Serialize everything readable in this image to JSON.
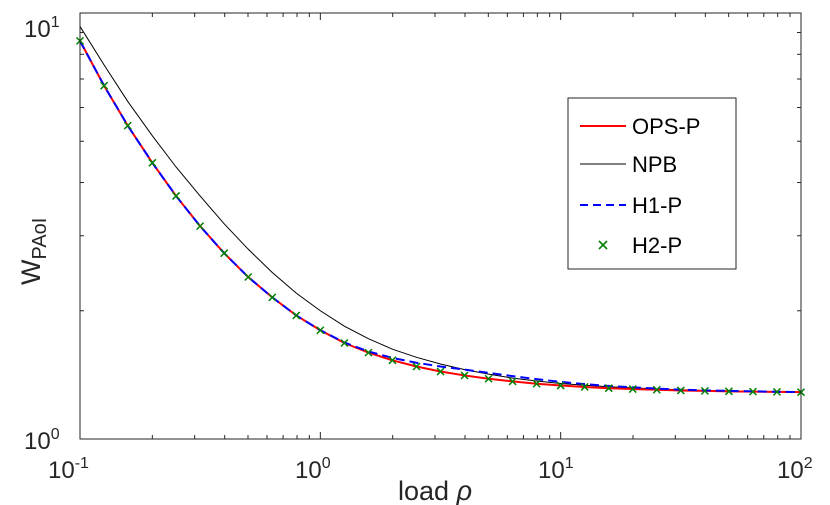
{
  "chart_data": {
    "type": "line",
    "xscale": "log",
    "yscale": "log",
    "xlim": [
      0.1,
      100
    ],
    "ylim": [
      1,
      10
    ],
    "x_ticks": [
      {
        "base": "10",
        "exp": "-1"
      },
      {
        "base": "10",
        "exp": "0"
      },
      {
        "base": "10",
        "exp": "1"
      },
      {
        "base": "10",
        "exp": "2"
      }
    ],
    "y_ticks": [
      {
        "base": "10",
        "exp": "0"
      },
      {
        "base": "10",
        "exp": "1"
      }
    ],
    "xlabel": "load ρ",
    "xlabel_main": "load ",
    "xlabel_symbol": "ρ",
    "ylabel_main": "W",
    "ylabel_sub": "PAoI",
    "grid": false,
    "legend_position": "top-right",
    "series": [
      {
        "name": "OPS-P",
        "color": "#ff0000",
        "style": "solid",
        "x": [
          0.1,
          0.126,
          0.158,
          0.2,
          0.251,
          0.316,
          0.398,
          0.501,
          0.631,
          0.794,
          1.0,
          1.259,
          1.585,
          1.995,
          2.512,
          3.162,
          3.981,
          5.012,
          6.31,
          7.943,
          10,
          12.59,
          15.85,
          19.95,
          25.12,
          31.62,
          39.81,
          50.12,
          63.1,
          79.43,
          100
        ],
        "y": [
          8.6,
          6.75,
          5.44,
          4.45,
          3.72,
          3.16,
          2.73,
          2.4,
          2.15,
          1.95,
          1.8,
          1.68,
          1.595,
          1.53,
          1.48,
          1.44,
          1.41,
          1.385,
          1.365,
          1.348,
          1.335,
          1.325,
          1.316,
          1.31,
          1.305,
          1.3,
          1.297,
          1.294,
          1.292,
          1.29,
          1.288
        ]
      },
      {
        "name": "NPB",
        "color": "#000000",
        "style": "solid",
        "x": [
          0.1,
          0.126,
          0.158,
          0.2,
          0.251,
          0.316,
          0.398,
          0.501,
          0.631,
          0.794,
          1.0,
          1.259,
          1.585,
          1.995,
          2.512,
          3.162,
          3.981,
          5.012,
          6.31,
          7.943,
          10,
          12.59,
          15.85,
          19.95,
          25.12,
          31.62,
          39.81,
          50.12,
          63.1,
          79.43,
          100
        ],
        "y": [
          9.3,
          7.55,
          6.2,
          5.15,
          4.35,
          3.72,
          3.2,
          2.79,
          2.46,
          2.2,
          2.0,
          1.84,
          1.72,
          1.625,
          1.555,
          1.5,
          1.455,
          1.42,
          1.39,
          1.368,
          1.35,
          1.337,
          1.326,
          1.318,
          1.311,
          1.305,
          1.3,
          1.297,
          1.294,
          1.291,
          1.289
        ]
      },
      {
        "name": "H1-P",
        "color": "#0000ff",
        "style": "dashed",
        "x": [
          0.1,
          0.126,
          0.158,
          0.2,
          0.251,
          0.316,
          0.398,
          0.501,
          0.631,
          0.794,
          1.0,
          1.259,
          1.585,
          1.995,
          2.512,
          3.162,
          3.981,
          5.012,
          6.31,
          7.943,
          10,
          12.59,
          15.85,
          19.95,
          25.12,
          31.62,
          39.81,
          50.12,
          63.1,
          79.43,
          100
        ],
        "y": [
          8.6,
          6.75,
          5.44,
          4.45,
          3.72,
          3.16,
          2.73,
          2.4,
          2.15,
          1.95,
          1.8,
          1.685,
          1.605,
          1.55,
          1.51,
          1.48,
          1.455,
          1.43,
          1.405,
          1.382,
          1.362,
          1.345,
          1.332,
          1.322,
          1.313,
          1.306,
          1.301,
          1.297,
          1.294,
          1.291,
          1.289
        ]
      },
      {
        "name": "H2-P",
        "color": "#008000",
        "style": "markers",
        "marker": "x",
        "x": [
          0.1,
          0.126,
          0.158,
          0.2,
          0.251,
          0.316,
          0.398,
          0.501,
          0.631,
          0.794,
          1.0,
          1.259,
          1.585,
          1.995,
          2.512,
          3.162,
          3.981,
          5.012,
          6.31,
          7.943,
          10,
          12.59,
          15.85,
          19.95,
          25.12,
          31.62,
          39.81,
          50.12,
          63.1,
          79.43,
          100
        ],
        "y": [
          8.6,
          6.75,
          5.44,
          4.45,
          3.72,
          3.16,
          2.73,
          2.4,
          2.15,
          1.95,
          1.8,
          1.68,
          1.595,
          1.53,
          1.48,
          1.44,
          1.41,
          1.385,
          1.365,
          1.348,
          1.335,
          1.325,
          1.316,
          1.31,
          1.305,
          1.3,
          1.297,
          1.294,
          1.292,
          1.29,
          1.288
        ]
      }
    ]
  }
}
